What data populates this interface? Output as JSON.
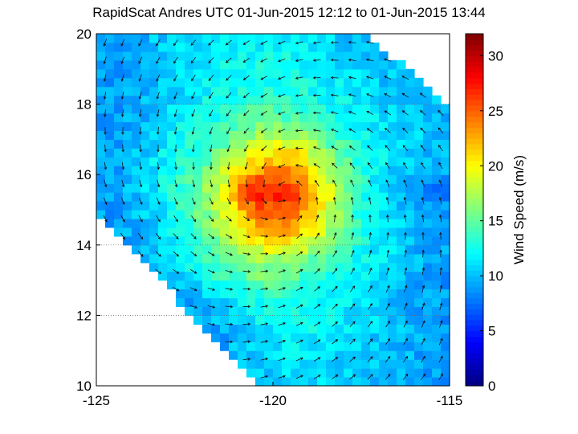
{
  "chart_data": {
    "type": "heatmap",
    "title": "RapidScat Andres UTC 01-Jun-2015 12:12 to 01-Jun-2015 13:44",
    "xlabel": "",
    "ylabel": "",
    "xlim": [
      -125,
      -115
    ],
    "ylim": [
      10,
      20
    ],
    "xticks": [
      -125,
      -120,
      -115
    ],
    "yticks": [
      10,
      12,
      14,
      16,
      18,
      20
    ],
    "grid": "dotted lines at y ticks",
    "colorbar": {
      "label": "Wind Speed (m/s)",
      "range": [
        0,
        32
      ],
      "ticks": [
        0,
        5,
        10,
        15,
        20,
        25,
        30
      ],
      "colormap": "jet"
    },
    "grid_lon": [
      -124.5,
      -123.5,
      -122.5,
      -121.5,
      -120.5,
      -119.5,
      -118.5,
      -117.5,
      -116.5,
      -115.5
    ],
    "grid_lat": [
      19.5,
      18.5,
      17.5,
      16.5,
      15.5,
      14.5,
      13.5,
      12.5,
      11.5,
      10.5
    ],
    "wind_speed": [
      [
        9,
        10,
        11,
        12,
        12,
        12,
        11,
        10,
        null,
        null
      ],
      [
        9,
        10,
        11,
        12,
        13,
        13,
        12,
        11,
        10,
        null
      ],
      [
        9,
        10,
        12,
        13,
        15,
        15,
        13,
        12,
        11,
        10
      ],
      [
        9,
        11,
        13,
        16,
        20,
        22,
        17,
        13,
        11,
        10
      ],
      [
        9,
        11,
        14,
        19,
        28,
        27,
        20,
        13,
        10,
        8
      ],
      [
        9,
        10,
        13,
        17,
        22,
        24,
        18,
        13,
        11,
        9
      ],
      [
        null,
        10,
        12,
        15,
        17,
        16,
        14,
        12,
        11,
        9
      ],
      [
        null,
        null,
        9,
        11,
        13,
        13,
        12,
        11,
        10,
        9
      ],
      [
        null,
        null,
        null,
        9,
        11,
        12,
        12,
        11,
        10,
        9
      ],
      [
        null,
        null,
        null,
        null,
        10,
        11,
        11,
        10,
        10,
        9
      ]
    ],
    "vectors": "wind direction arrows, cyclonic (counter-clockwise) circulation"
  }
}
